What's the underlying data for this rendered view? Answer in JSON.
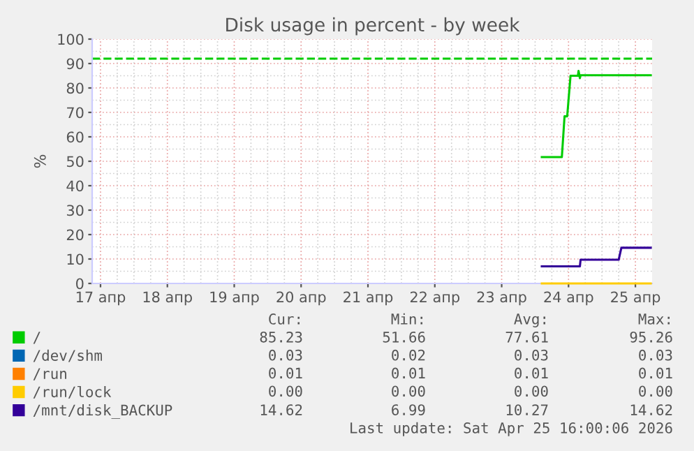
{
  "chart_data": {
    "type": "line",
    "title": "Disk usage in percent - by week",
    "ylabel": "%",
    "x": [
      "2026-04-23T14:24",
      "2026-04-23T21:36",
      "2026-04-23T22:34",
      "2026-04-23T23:31",
      "2026-04-24T00:43",
      "2026-04-24T03:22",
      "2026-04-24T03:36",
      "2026-04-24T04:05",
      "2026-04-24T04:19",
      "2026-04-24T18:00",
      "2026-04-24T18:58",
      "2026-04-25T05:31"
    ],
    "series": [
      {
        "name": "/",
        "color": "#00cc00",
        "values": [
          51.7,
          51.7,
          68.4,
          68.4,
          85.0,
          85.0,
          87.0,
          84.0,
          85.2,
          85.2,
          85.2,
          85.2
        ]
      },
      {
        "name": "/dev/shm",
        "color": "#0066b3",
        "values": [
          null,
          null,
          null,
          null,
          null,
          null,
          null,
          null,
          null,
          null,
          null,
          null
        ]
      },
      {
        "name": "/run",
        "color": "#ff8000",
        "values": [
          null,
          null,
          null,
          null,
          null,
          null,
          null,
          null,
          null,
          null,
          null,
          null
        ]
      },
      {
        "name": "/run/lock",
        "color": "#ffcc00",
        "values": [
          0.0,
          0.0,
          0.0,
          0.0,
          0.0,
          0.0,
          0.0,
          0.0,
          0.0,
          0.0,
          0.0,
          0.0
        ]
      },
      {
        "name": "/mnt/disk_BACKUP",
        "color": "#330099",
        "values": [
          7.0,
          7.0,
          7.0,
          7.0,
          7.0,
          7.0,
          7.0,
          7.0,
          9.7,
          9.7,
          14.6,
          14.6
        ]
      }
    ],
    "xlim": [
      "2026-04-16T21:00",
      "2026-04-25T06:00"
    ],
    "xticks": [
      {
        "value": "2026-04-17",
        "label": "17 апр"
      },
      {
        "value": "2026-04-18",
        "label": "18 апр"
      },
      {
        "value": "2026-04-19",
        "label": "19 апр"
      },
      {
        "value": "2026-04-20",
        "label": "20 апр"
      },
      {
        "value": "2026-04-21",
        "label": "21 апр"
      },
      {
        "value": "2026-04-22",
        "label": "22 апр"
      },
      {
        "value": "2026-04-23",
        "label": "23 апр"
      },
      {
        "value": "2026-04-24",
        "label": "24 апр"
      },
      {
        "value": "2026-04-25",
        "label": "25 апр"
      }
    ],
    "ylim": [
      0,
      100
    ],
    "yticks": [
      0,
      10,
      20,
      30,
      40,
      50,
      60,
      70,
      80,
      90,
      100
    ],
    "ref_lines": [
      {
        "axis": "y",
        "value": 92,
        "color": "#00cc00",
        "line_style": "dashed"
      }
    ],
    "grid": true,
    "legend": "bottom",
    "annotations": [
      "Cur:",
      "Min:",
      "Avg:",
      "Max:",
      "85.23",
      "51.66",
      "77.61",
      "95.26",
      "0.03",
      "0.02",
      "0.03",
      "0.03",
      "0.01",
      "0.01",
      "0.01",
      "0.01",
      "0.00",
      "0.00",
      "0.00",
      "0.00",
      "14.62",
      "6.99",
      "10.27",
      "14.62",
      "Last update: Sat Apr 25 16:00:06 2026"
    ]
  }
}
